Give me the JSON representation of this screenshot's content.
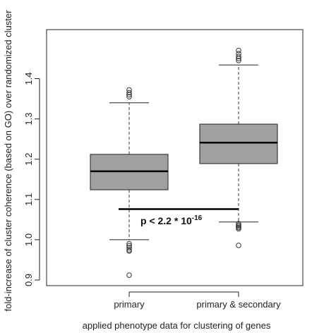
{
  "chart_data": {
    "type": "box",
    "title": "",
    "xlabel": "applied phenotype data for clustering of genes",
    "ylabel": "fold-increase of cluster coherence (based on GO) over randomized cluster",
    "ylim": [
      0.89,
      1.48
    ],
    "yticks": [
      0.9,
      1.0,
      1.1,
      1.2,
      1.3,
      1.4
    ],
    "ytick_labels": [
      "0.9",
      "1.0",
      "1.1",
      "1.2",
      "1.3",
      "1.4"
    ],
    "grid": false,
    "box_color": "#a0a0a0",
    "categories": [
      "primary",
      "primary & secondary"
    ],
    "boxes": [
      {
        "name": "primary",
        "whisker_low": 1.0,
        "q1": 1.124,
        "median": 1.17,
        "q3": 1.212,
        "whisker_high": 1.34,
        "outliers_high": [
          1.355,
          1.36,
          1.365,
          1.372
        ],
        "outliers_low": [
          0.99,
          0.985,
          0.98,
          0.975,
          0.972,
          0.912
        ]
      },
      {
        "name": "primary & secondary",
        "whisker_low": 1.044,
        "q1": 1.189,
        "median": 1.241,
        "q3": 1.287,
        "whisker_high": 1.434,
        "outliers_high": [
          1.445,
          1.45,
          1.455,
          1.462,
          1.47
        ],
        "outliers_low": [
          1.04,
          1.036,
          1.033,
          1.03,
          1.027,
          0.986
        ]
      }
    ],
    "annotation": {
      "text_main": "p < 2.2 * 10",
      "text_sup": "-16",
      "bar_y": 1.076
    }
  }
}
